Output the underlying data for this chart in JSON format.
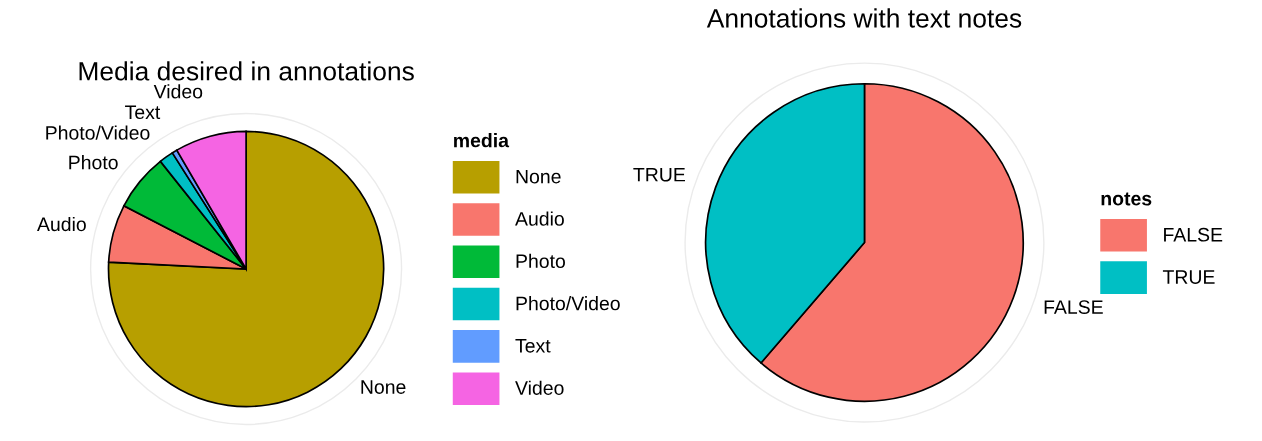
{
  "chart_data": [
    {
      "type": "pie",
      "title": "Media desired in annotations",
      "legend_title": "media",
      "legend": "right",
      "categories": [
        "None",
        "Audio",
        "Photo",
        "Photo/Video",
        "Text",
        "Video"
      ],
      "values": [
        75.8,
        6.8,
        6.7,
        1.7,
        0.6,
        8.4
      ],
      "colors": [
        "#b79f00",
        "#f8766d",
        "#00ba38",
        "#00bfc4",
        "#619cff",
        "#f564e3"
      ]
    },
    {
      "type": "pie",
      "title": "Annotations with text notes",
      "legend_title": "notes",
      "legend": "right",
      "categories": [
        "FALSE",
        "TRUE"
      ],
      "values": [
        61.3,
        38.7
      ],
      "colors": [
        "#f8766d",
        "#00bfc4"
      ]
    }
  ]
}
